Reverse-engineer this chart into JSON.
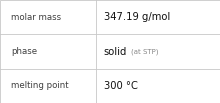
{
  "rows": [
    {
      "label": "molar mass",
      "value": "347.19 g/mol",
      "value_suffix": null
    },
    {
      "label": "phase",
      "value": "solid",
      "value_suffix": "(at STP)"
    },
    {
      "label": "melting point",
      "value": "300 °C",
      "value_suffix": null
    }
  ],
  "background_color": "#ffffff",
  "border_color": "#c8c8c8",
  "label_color": "#404040",
  "value_color": "#111111",
  "suffix_color": "#888888",
  "label_fontsize": 6.2,
  "value_fontsize": 7.2,
  "suffix_fontsize": 5.0,
  "col_split": 0.435
}
